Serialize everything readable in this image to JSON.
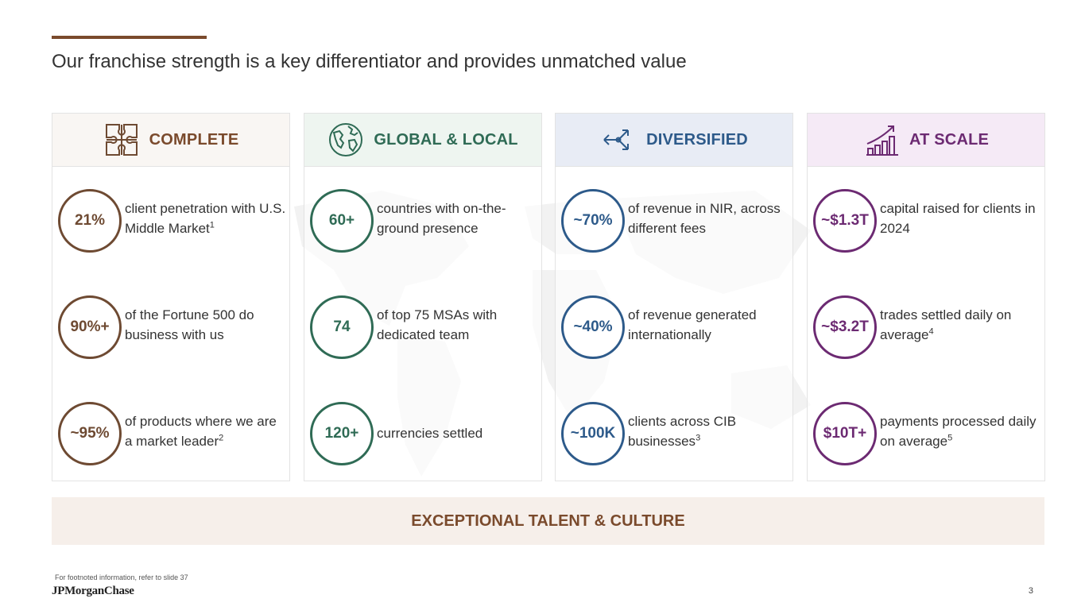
{
  "slide": {
    "title": "Our franchise strength is a key differentiator and provides unmatched value",
    "footnote": "For footnoted information, refer to slide 37",
    "logo": "JPMorganChase",
    "page_number": "3"
  },
  "columns": [
    {
      "heading": "COMPLETE",
      "icon": "puzzle-icon",
      "color": "#6e4a32",
      "stats": [
        {
          "value": "21%",
          "text": "client penetration with U.S. Middle Market",
          "sup": "1"
        },
        {
          "value": "90%+",
          "text": "of the Fortune 500 do business with us",
          "sup": ""
        },
        {
          "value": "~95%",
          "text": "of products where we are a market leader",
          "sup": "2"
        }
      ]
    },
    {
      "heading": "GLOBAL & LOCAL",
      "icon": "globe-icon",
      "color": "#2f6b55",
      "stats": [
        {
          "value": "60+",
          "text": "countries with on-the-ground presence",
          "sup": ""
        },
        {
          "value": "74",
          "text": "of top 75 MSAs with dedicated team",
          "sup": ""
        },
        {
          "value": "120+",
          "text": "currencies settled",
          "sup": ""
        }
      ]
    },
    {
      "heading": "DIVERSIFIED",
      "icon": "diverging-arrows-icon",
      "color": "#2d5a8a",
      "stats": [
        {
          "value": "~70%",
          "text": "of revenue in NIR, across different fees",
          "sup": ""
        },
        {
          "value": "~40%",
          "text": "of revenue generated internationally",
          "sup": ""
        },
        {
          "value": "~100K",
          "text": "clients across CIB businesses",
          "sup": "3"
        }
      ]
    },
    {
      "heading": "AT SCALE",
      "icon": "growth-chart-icon",
      "color": "#6c2a72",
      "stats": [
        {
          "value": "~$1.3T",
          "text": "capital raised for clients in 2024",
          "sup": ""
        },
        {
          "value": "~$3.2T",
          "text": "trades settled daily on average",
          "sup": "4"
        },
        {
          "value": "$10T+",
          "text": "payments processed daily on average",
          "sup": "5"
        }
      ]
    }
  ],
  "banner": "EXCEPTIONAL TALENT & CULTURE"
}
